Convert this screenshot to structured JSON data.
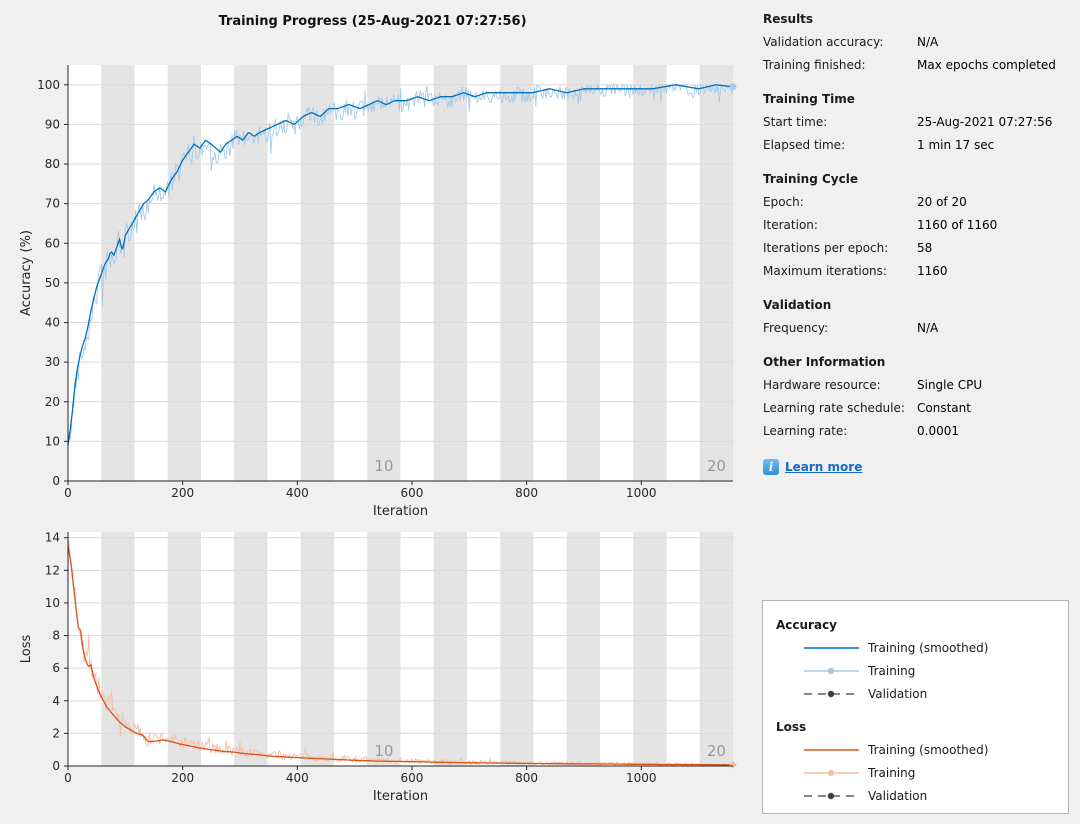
{
  "window_title": "Training Progress (25-Aug-2021 07:27:56)",
  "colors": {
    "figure_bg": "#f0f0f0",
    "plot_bg": "#ffffff",
    "epoch_band": "#e4e4e4",
    "gridline": "#dadada",
    "axis": "#262626",
    "epoch_label": "#989898",
    "accuracy_smoothed": "#0072bd",
    "accuracy_raw": "#a6cbe8",
    "loss_smoothed": "#d95319",
    "loss_raw": "#f4bfa6",
    "validation": "#404040",
    "link": "#1569c8"
  },
  "info_panel": {
    "sections": [
      {
        "heading": "Results",
        "rows": [
          {
            "label": "Validation accuracy:",
            "value": "N/A"
          },
          {
            "label": "Training finished:",
            "value": "Max epochs completed"
          }
        ]
      },
      {
        "heading": "Training Time",
        "rows": [
          {
            "label": "Start time:",
            "value": "25-Aug-2021 07:27:56"
          },
          {
            "label": "Elapsed time:",
            "value": "1 min 17 sec"
          }
        ]
      },
      {
        "heading": "Training Cycle",
        "rows": [
          {
            "label": "Epoch:",
            "value": "20 of 20"
          },
          {
            "label": "Iteration:",
            "value": "1160 of 1160"
          },
          {
            "label": "Iterations per epoch:",
            "value": "58"
          },
          {
            "label": "Maximum iterations:",
            "value": "1160"
          }
        ]
      },
      {
        "heading": "Validation",
        "rows": [
          {
            "label": "Frequency:",
            "value": "N/A"
          }
        ]
      },
      {
        "heading": "Other Information",
        "rows": [
          {
            "label": "Hardware resource:",
            "value": "Single CPU"
          },
          {
            "label": "Learning rate schedule:",
            "value": "Constant"
          },
          {
            "label": "Learning rate:",
            "value": "0.0001"
          }
        ]
      }
    ],
    "learn_more_label": "Learn more",
    "info_icon_glyph": "i"
  },
  "legend": {
    "groups": [
      {
        "heading": "Accuracy",
        "items": [
          {
            "label": "Training (smoothed)",
            "style": "solid",
            "color": "#0072bd"
          },
          {
            "label": "Training",
            "style": "solid-marker",
            "color": "#a6cbe8"
          },
          {
            "label": "Validation",
            "style": "dashed-marker",
            "color": "#404040"
          }
        ]
      },
      {
        "heading": "Loss",
        "items": [
          {
            "label": "Training (smoothed)",
            "style": "solid",
            "color": "#d95319"
          },
          {
            "label": "Training",
            "style": "solid-marker",
            "color": "#f4bfa6"
          },
          {
            "label": "Validation",
            "style": "dashed-marker",
            "color": "#404040"
          }
        ]
      }
    ]
  },
  "chart_data": [
    {
      "type": "line",
      "title": "Training Progress (25-Aug-2021 07:27:56)",
      "xlabel": "Iteration",
      "ylabel": "Accuracy (%)",
      "xlim": [
        0,
        1160
      ],
      "ylim": [
        0,
        105
      ],
      "xticks": [
        0,
        200,
        400,
        600,
        800,
        1000
      ],
      "yticks": [
        0,
        10,
        20,
        30,
        40,
        50,
        60,
        70,
        80,
        90,
        100
      ],
      "grid": "horizontal",
      "epochs": 20,
      "iterations_per_epoch": 58,
      "epoch_labels": [
        {
          "epoch": 10,
          "text": "10"
        },
        {
          "epoch": 20,
          "text": "20"
        }
      ],
      "series": [
        {
          "name": "Training",
          "color": "#a6cbe8",
          "role": "raw",
          "end_marker": "circle"
        },
        {
          "name": "Training (smoothed)",
          "color": "#0072bd",
          "role": "smoothed",
          "x": [
            0,
            4,
            8,
            12,
            16,
            20,
            25,
            30,
            35,
            40,
            45,
            50,
            55,
            60,
            65,
            70,
            75,
            80,
            85,
            90,
            95,
            100,
            108,
            116,
            124,
            132,
            140,
            150,
            160,
            170,
            180,
            190,
            200,
            210,
            220,
            230,
            240,
            250,
            258,
            266,
            275,
            285,
            295,
            305,
            315,
            325,
            335,
            350,
            365,
            380,
            395,
            410,
            425,
            440,
            455,
            470,
            490,
            510,
            525,
            540,
            555,
            570,
            590,
            610,
            630,
            650,
            670,
            690,
            710,
            730,
            750,
            780,
            810,
            840,
            870,
            900,
            940,
            980,
            1020,
            1060,
            1100,
            1130,
            1160
          ],
          "y": [
            9,
            13,
            18,
            24,
            28,
            31,
            34,
            36,
            39,
            43,
            46,
            49,
            51,
            53,
            55,
            56,
            58,
            57,
            59,
            61,
            58,
            62,
            64,
            66,
            68,
            70,
            71,
            73,
            74,
            73,
            76,
            78,
            81,
            83,
            85,
            84,
            86,
            85,
            84,
            83,
            85,
            86,
            87,
            86,
            88,
            87,
            88,
            89,
            90,
            91,
            90,
            92,
            93,
            92,
            94,
            94,
            95,
            94,
            95,
            96,
            95,
            96,
            96,
            97,
            96,
            97,
            97,
            98,
            97,
            98,
            98,
            98,
            98,
            99,
            98,
            99,
            99,
            99,
            99,
            100,
            99,
            100,
            99.5
          ]
        }
      ],
      "noise_envelope": [
        [
          0,
          3
        ],
        [
          60,
          4
        ],
        [
          150,
          3.5
        ],
        [
          300,
          3
        ],
        [
          500,
          2.5
        ],
        [
          800,
          2
        ],
        [
          1160,
          1.8
        ]
      ],
      "final_values": {
        "iteration": 1160,
        "accuracy_pct": 99.5
      }
    },
    {
      "type": "line",
      "title": "",
      "xlabel": "Iteration",
      "ylabel": "Loss",
      "xlim": [
        0,
        1160
      ],
      "ylim": [
        0,
        14.35
      ],
      "xticks": [
        0,
        200,
        400,
        600,
        800,
        1000
      ],
      "yticks": [
        0,
        2,
        4,
        6,
        8,
        10,
        12,
        14
      ],
      "grid": "horizontal",
      "epochs": 20,
      "iterations_per_epoch": 58,
      "epoch_labels": [
        {
          "epoch": 10,
          "text": "10"
        },
        {
          "epoch": 20,
          "text": "20"
        }
      ],
      "series": [
        {
          "name": "Training",
          "color": "#f4bfa6",
          "role": "raw",
          "end_marker": "diamond"
        },
        {
          "name": "Training (smoothed)",
          "color": "#d95319",
          "role": "smoothed",
          "x": [
            0,
            3,
            6,
            9,
            12,
            15,
            18,
            22,
            26,
            30,
            35,
            40,
            45,
            50,
            56,
            62,
            68,
            75,
            82,
            90,
            100,
            110,
            120,
            130,
            140,
            150,
            165,
            180,
            195,
            210,
            230,
            250,
            270,
            290,
            310,
            330,
            355,
            380,
            410,
            440,
            470,
            500,
            540,
            580,
            620,
            660,
            700,
            750,
            800,
            850,
            900,
            950,
            1000,
            1060,
            1120,
            1160
          ],
          "y": [
            13.5,
            12.9,
            12.2,
            11.2,
            10.3,
            9.4,
            8.5,
            8.3,
            7.2,
            6.6,
            6.1,
            6.2,
            5.4,
            4.9,
            4.4,
            4.0,
            3.6,
            3.3,
            3.0,
            2.7,
            2.4,
            2.2,
            2.0,
            1.9,
            1.5,
            1.5,
            1.6,
            1.5,
            1.35,
            1.25,
            1.1,
            1.0,
            0.9,
            0.85,
            0.75,
            0.7,
            0.6,
            0.55,
            0.5,
            0.45,
            0.4,
            0.35,
            0.3,
            0.28,
            0.25,
            0.22,
            0.2,
            0.18,
            0.16,
            0.14,
            0.13,
            0.12,
            0.1,
            0.09,
            0.08,
            0.07
          ]
        }
      ],
      "noise_envelope": [
        [
          0,
          0.5
        ],
        [
          20,
          1.0
        ],
        [
          40,
          0.9
        ],
        [
          80,
          0.6
        ],
        [
          150,
          0.45
        ],
        [
          300,
          0.3
        ],
        [
          600,
          0.15
        ],
        [
          1160,
          0.08
        ]
      ],
      "final_values": {
        "iteration": 1160,
        "loss": 0.07
      }
    }
  ]
}
